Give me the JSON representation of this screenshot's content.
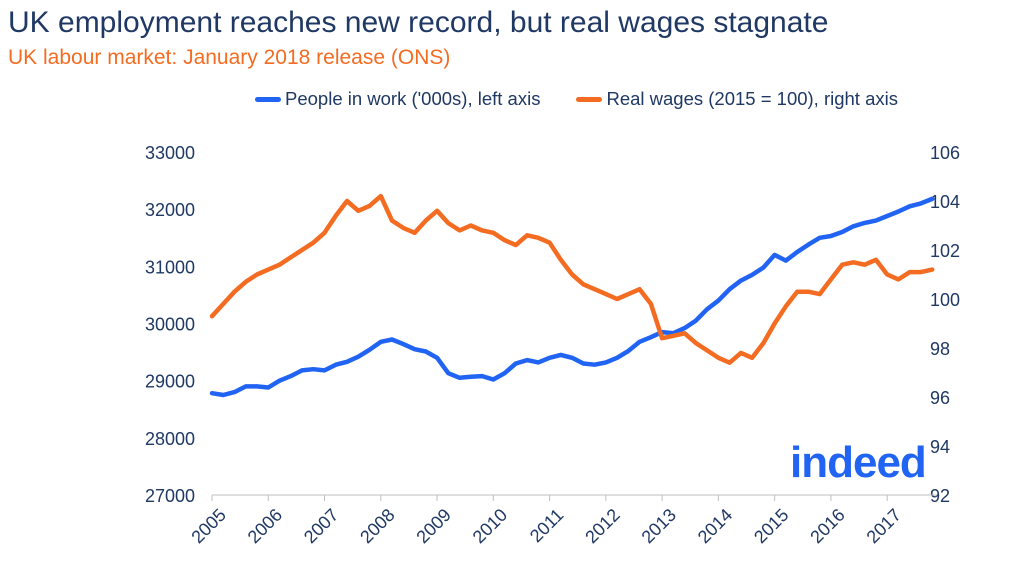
{
  "title": "UK employment reaches new record, but real wages stagnate",
  "subtitle": "UK labour market: January 2018 release (ONS)",
  "logo_text": "indeed",
  "colors": {
    "employment": "#2164f3",
    "wages": "#f36c21",
    "title": "#1f3864",
    "subtitle": "#f36c21"
  },
  "chart_data": {
    "type": "line",
    "title": "UK employment reaches new record, but real wages stagnate",
    "subtitle": "UK labour market: January 2018 release (ONS)",
    "x_ticks": [
      "2005",
      "2006",
      "2007",
      "2008",
      "2009",
      "2010",
      "2011",
      "2012",
      "2013",
      "2014",
      "2015",
      "2016",
      "2017"
    ],
    "x_range": [
      2005.0,
      2017.85
    ],
    "left_axis": {
      "ticks": [
        "27000",
        "28000",
        "29000",
        "30000",
        "31000",
        "32000",
        "33000"
      ],
      "range": [
        27000,
        33000
      ]
    },
    "right_axis": {
      "ticks": [
        "92",
        "94",
        "96",
        "98",
        "100",
        "102",
        "104",
        "106"
      ],
      "range": [
        92,
        106
      ]
    },
    "legend_position": "top-right",
    "grid": false,
    "series": [
      {
        "name": "People in work ('000s), left axis",
        "axis": "left",
        "color": "#2164f3",
        "x": [
          2005.0,
          2005.2,
          2005.4,
          2005.6,
          2005.8,
          2006.0,
          2006.2,
          2006.4,
          2006.6,
          2006.8,
          2007.0,
          2007.2,
          2007.4,
          2007.6,
          2007.8,
          2008.0,
          2008.2,
          2008.4,
          2008.6,
          2008.8,
          2009.0,
          2009.2,
          2009.4,
          2009.6,
          2009.8,
          2010.0,
          2010.2,
          2010.4,
          2010.6,
          2010.8,
          2011.0,
          2011.2,
          2011.4,
          2011.6,
          2011.8,
          2012.0,
          2012.2,
          2012.4,
          2012.6,
          2012.8,
          2013.0,
          2013.2,
          2013.4,
          2013.6,
          2013.8,
          2014.0,
          2014.2,
          2014.4,
          2014.6,
          2014.8,
          2015.0,
          2015.2,
          2015.4,
          2015.6,
          2015.8,
          2016.0,
          2016.2,
          2016.4,
          2016.6,
          2016.8,
          2017.0,
          2017.2,
          2017.4,
          2017.6,
          2017.8
        ],
        "values": [
          28780,
          28750,
          28800,
          28900,
          28900,
          28880,
          29000,
          29080,
          29180,
          29200,
          29180,
          29280,
          29330,
          29420,
          29540,
          29680,
          29720,
          29640,
          29550,
          29510,
          29400,
          29130,
          29050,
          29070,
          29080,
          29020,
          29130,
          29300,
          29360,
          29320,
          29400,
          29450,
          29400,
          29300,
          29280,
          29320,
          29400,
          29520,
          29680,
          29760,
          29850,
          29830,
          29920,
          30050,
          30250,
          30400,
          30600,
          30750,
          30850,
          30980,
          31200,
          31100,
          31250,
          31380,
          31500,
          31530,
          31600,
          31700,
          31760,
          31800,
          31880,
          31960,
          32050,
          32100,
          32180
        ]
      },
      {
        "name": "Real wages (2015 = 100), right axis",
        "axis": "right",
        "color": "#f36c21",
        "x": [
          2005.0,
          2005.2,
          2005.4,
          2005.6,
          2005.8,
          2006.0,
          2006.2,
          2006.4,
          2006.6,
          2006.8,
          2007.0,
          2007.2,
          2007.4,
          2007.6,
          2007.8,
          2008.0,
          2008.2,
          2008.4,
          2008.6,
          2008.8,
          2009.0,
          2009.2,
          2009.4,
          2009.6,
          2009.8,
          2010.0,
          2010.2,
          2010.4,
          2010.6,
          2010.8,
          2011.0,
          2011.2,
          2011.4,
          2011.6,
          2011.8,
          2012.0,
          2012.2,
          2012.4,
          2012.6,
          2012.8,
          2013.0,
          2013.2,
          2013.4,
          2013.6,
          2013.8,
          2014.0,
          2014.2,
          2014.4,
          2014.6,
          2014.8,
          2015.0,
          2015.2,
          2015.4,
          2015.6,
          2015.8,
          2016.0,
          2016.2,
          2016.4,
          2016.6,
          2016.8,
          2017.0,
          2017.2,
          2017.4,
          2017.6,
          2017.8
        ],
        "values": [
          99.3,
          99.8,
          100.3,
          100.7,
          101.0,
          101.2,
          101.4,
          101.7,
          102.0,
          102.3,
          102.7,
          103.4,
          104.0,
          103.6,
          103.8,
          104.2,
          103.2,
          102.9,
          102.7,
          103.2,
          103.6,
          103.1,
          102.8,
          103.0,
          102.8,
          102.7,
          102.4,
          102.2,
          102.6,
          102.5,
          102.3,
          101.6,
          101.0,
          100.6,
          100.4,
          100.2,
          100.0,
          100.2,
          100.4,
          99.8,
          98.4,
          98.5,
          98.6,
          98.2,
          97.9,
          97.6,
          97.4,
          97.8,
          97.6,
          98.2,
          99.0,
          99.7,
          100.3,
          100.3,
          100.2,
          100.8,
          101.4,
          101.5,
          101.4,
          101.6,
          101.0,
          100.8,
          101.1,
          101.1,
          101.2
        ]
      }
    ]
  }
}
